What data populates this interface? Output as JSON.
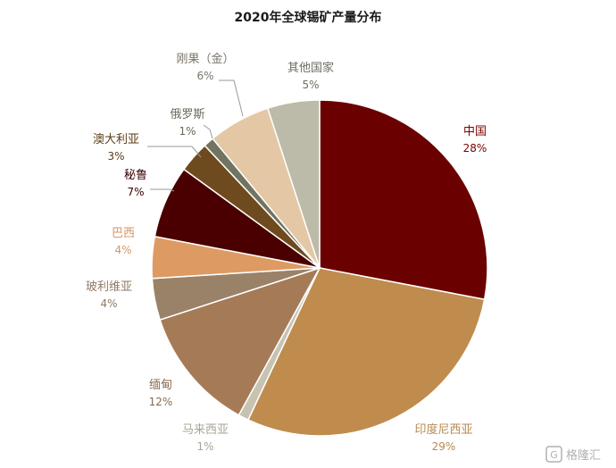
{
  "chart_data": {
    "type": "pie",
    "title": "2020年全球锡矿产量分布",
    "slices": [
      {
        "label": "中国",
        "value": 28,
        "pct_text": "28%",
        "color": "#6b0000"
      },
      {
        "label": "印度尼西亚",
        "value": 29,
        "pct_text": "29%",
        "color": "#bf8c4e"
      },
      {
        "label": "马来西亚",
        "value": 1,
        "pct_text": "1%",
        "color": "#c8c3b1"
      },
      {
        "label": "缅甸",
        "value": 12,
        "pct_text": "12%",
        "color": "#a57b57"
      },
      {
        "label": "玻利维亚",
        "value": 4,
        "pct_text": "4%",
        "color": "#9a8268"
      },
      {
        "label": "巴西",
        "value": 4,
        "pct_text": "4%",
        "color": "#de9a63"
      },
      {
        "label": "秘鲁",
        "value": 7,
        "pct_text": "7%",
        "color": "#4a0000"
      },
      {
        "label": "澳大利亚",
        "value": 3,
        "pct_text": "3%",
        "color": "#6e4a1e"
      },
      {
        "label": "俄罗斯",
        "value": 1,
        "pct_text": "1%",
        "color": "#707460"
      },
      {
        "label": "刚果（金）",
        "value": 6,
        "pct_text": "6%",
        "color": "#e4c7a5"
      },
      {
        "label": "其他国家",
        "value": 5,
        "pct_text": "5%",
        "color": "#bcbaa9"
      }
    ],
    "label_colors": {
      "中国": "#7a0000",
      "印度尼西亚": "#b78a52",
      "马来西亚": "#a9a495",
      "缅甸": "#8b6a4f",
      "玻利维亚": "#8f7a63",
      "巴西": "#d99560",
      "秘鲁": "#3a0000",
      "澳大利亚": "#5c3d16",
      "俄罗斯": "#6a6a5a",
      "刚果（金）": "#7a7468",
      "其他国家": "#6e6c60"
    }
  },
  "watermark": {
    "text": "格隆汇",
    "icon": "gelonghui-logo-icon"
  }
}
